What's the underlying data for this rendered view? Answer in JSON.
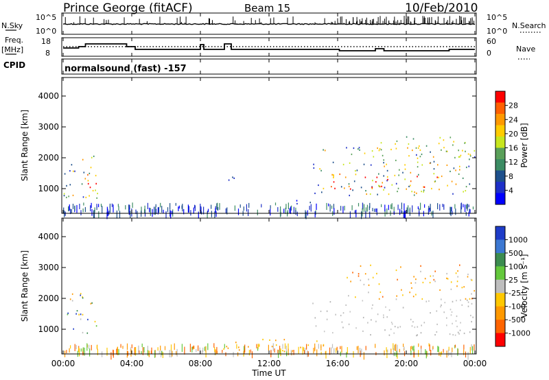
{
  "header": {
    "station": "Prince George (fitACF)",
    "beam": "Beam 15",
    "date": "10/Feb/2010"
  },
  "noise_panel": {
    "left_label": "N.Sky",
    "right_label": "N.Search",
    "left_ticks": [
      "10^5",
      "10^0"
    ],
    "right_ticks": [
      "10^5",
      "10^0"
    ]
  },
  "freq_panel": {
    "left_label_line1": "Freq.",
    "left_label_line2": "[MHz]",
    "left_ticks": [
      "18",
      "8"
    ],
    "right_ticks": [
      "60",
      "0"
    ],
    "right_label": "Nave"
  },
  "cpid_panel": {
    "label": "CPID",
    "text": "normalsound (fast) -157"
  },
  "chart_data": [
    {
      "type": "heatmap",
      "name": "Power",
      "ylabel": "Slant Range [km]",
      "ylim": [
        200,
        4600
      ],
      "yticks": [
        "4000",
        "3000",
        "2000",
        "1000"
      ],
      "xlim_hours": [
        0,
        24
      ],
      "colorbar": {
        "label": "Power [dB]",
        "ticks": [
          "28",
          "24",
          "20",
          "16",
          "12",
          "8",
          "4"
        ],
        "colors": [
          "#ff0000",
          "#ff6000",
          "#ff9900",
          "#ffcc00",
          "#c8e61e",
          "#5aa05a",
          "#3c8c64",
          "#1e508c",
          "#1e30c8",
          "#0000ff"
        ]
      },
      "patches": [
        {
          "t0": 0.0,
          "t1": 2.2,
          "r0": 700,
          "r1": 2200,
          "level": "high"
        },
        {
          "t0": 1.0,
          "t1": 2.0,
          "r0": 900,
          "r1": 1500,
          "level": "peak"
        },
        {
          "t0": 9.4,
          "t1": 10.2,
          "r0": 1000,
          "r1": 1400,
          "level": "low"
        },
        {
          "t0": 13.2,
          "t1": 15.2,
          "r0": 500,
          "r1": 700,
          "level": "low"
        },
        {
          "t0": 14.5,
          "t1": 24.0,
          "r0": 800,
          "r1": 2400,
          "level": "high"
        },
        {
          "t0": 15.5,
          "t1": 22.5,
          "r0": 1000,
          "r1": 1500,
          "level": "peak"
        },
        {
          "t0": 18.5,
          "t1": 24.0,
          "r0": 2000,
          "r1": 2700,
          "level": "mid"
        }
      ]
    },
    {
      "type": "heatmap",
      "name": "Velocity",
      "ylabel": "Slant Range [km]",
      "ylim": [
        200,
        4600
      ],
      "yticks": [
        "4000",
        "3000",
        "2000",
        "1000"
      ],
      "xlim_hours": [
        0,
        24
      ],
      "xticks": [
        "00:00",
        "04:00",
        "08:00",
        "12:00",
        "16:00",
        "20:00",
        "00:00"
      ],
      "xlabel": "Time UT",
      "colorbar": {
        "label": "Velocity [m s⁻¹]",
        "ticks": [
          "1000",
          "500",
          "100",
          "25",
          "-25",
          "-100",
          "-500",
          "-1000"
        ],
        "colors": [
          "#1e3cc8",
          "#3c78d2",
          "#3c8c50",
          "#64c83c",
          "#bebebe",
          "#ffc800",
          "#ff9900",
          "#ff6400",
          "#ff0000"
        ]
      },
      "patches": [
        {
          "t0": 0.0,
          "t1": 2.0,
          "r0": 800,
          "r1": 2200,
          "level": "mixed"
        },
        {
          "t0": 14.5,
          "t1": 24.0,
          "r0": 800,
          "r1": 2000,
          "level": "zero"
        },
        {
          "t0": 16.5,
          "t1": 24.0,
          "r0": 2000,
          "r1": 3100,
          "level": "neg"
        },
        {
          "t0": 9.0,
          "t1": 15.5,
          "r0": 300,
          "r1": 700,
          "level": "neg_low"
        }
      ]
    }
  ]
}
